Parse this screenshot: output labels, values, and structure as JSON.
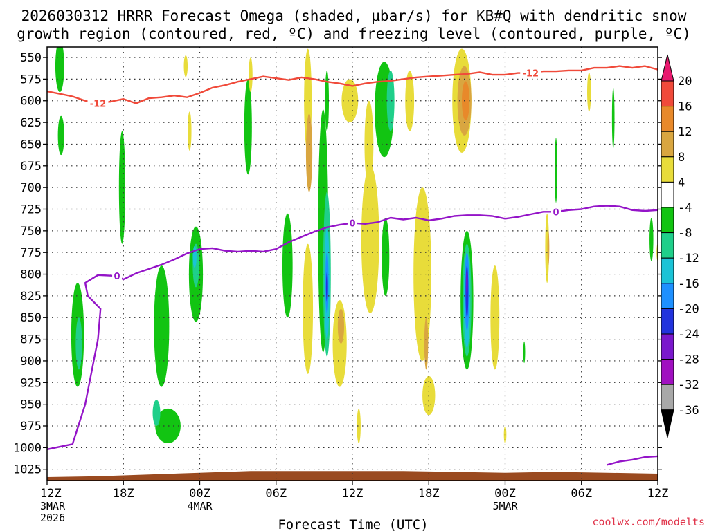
{
  "chart_data": {
    "type": "time-height",
    "title_line1": "2026030312 HRRR Forecast Omega (shaded, μbar/s) for KB#Q with dendritic snow",
    "title_line2": "growth region (contoured, red, ºC) and freezing level (contoured, purple, ºC)",
    "xlabel": "Forecast Time (UTC)",
    "credit": "coolwx.com/modelts",
    "ylim": [
      538,
      1038
    ],
    "xlim": [
      0,
      48
    ],
    "y_ticks": [
      {
        "label": "550",
        "p": 550
      },
      {
        "label": "575",
        "p": 575
      },
      {
        "label": "600",
        "p": 600
      },
      {
        "label": "625",
        "p": 625
      },
      {
        "label": "650",
        "p": 650
      },
      {
        "label": "675",
        "p": 675
      },
      {
        "label": "700",
        "p": 700
      },
      {
        "label": "725",
        "p": 725
      },
      {
        "label": "750",
        "p": 750
      },
      {
        "label": "775",
        "p": 775
      },
      {
        "label": "800",
        "p": 800
      },
      {
        "label": "825",
        "p": 825
      },
      {
        "label": "850",
        "p": 850
      },
      {
        "label": "875",
        "p": 875
      },
      {
        "label": "900",
        "p": 900
      },
      {
        "label": "925",
        "p": 925
      },
      {
        "label": "950",
        "p": 950
      },
      {
        "label": "975",
        "p": 975
      },
      {
        "label": "1000",
        "p": 1000
      },
      {
        "label": "1025",
        "p": 1025
      }
    ],
    "x_ticks": [
      {
        "label": "12Z",
        "h": 0,
        "date": "3MAR",
        "year": "2026"
      },
      {
        "label": "18Z",
        "h": 6
      },
      {
        "label": "00Z",
        "h": 12,
        "date": "4MAR"
      },
      {
        "label": "06Z",
        "h": 18
      },
      {
        "label": "12Z",
        "h": 24
      },
      {
        "label": "18Z",
        "h": 30
      },
      {
        "label": "00Z",
        "h": 36,
        "date": "5MAR"
      },
      {
        "label": "06Z",
        "h": 42
      },
      {
        "label": "12Z",
        "h": 48
      }
    ],
    "colorbar": {
      "labels": [
        "20",
        "16",
        "12",
        "8",
        "4",
        "-4",
        "-8",
        "-12",
        "-16",
        "-20",
        "-24",
        "-28",
        "-32",
        "-36"
      ],
      "bins": [
        {
          "lo": 20,
          "hi": 24,
          "color": "#e8196e"
        },
        {
          "lo": 16,
          "hi": 20,
          "color": "#f04a3a"
        },
        {
          "lo": 12,
          "hi": 16,
          "color": "#e8892a"
        },
        {
          "lo": 8,
          "hi": 12,
          "color": "#d9a640"
        },
        {
          "lo": 4,
          "hi": 8,
          "color": "#e8dc3a"
        },
        {
          "lo": -4,
          "hi": 4,
          "color": "#ffffff"
        },
        {
          "lo": -8,
          "hi": -4,
          "color": "#12c412"
        },
        {
          "lo": -12,
          "hi": -8,
          "color": "#1fcf8a"
        },
        {
          "lo": -16,
          "hi": -12,
          "color": "#1bc3d6"
        },
        {
          "lo": -20,
          "hi": -16,
          "color": "#1e90ff"
        },
        {
          "lo": -24,
          "hi": -20,
          "color": "#2233dd"
        },
        {
          "lo": -28,
          "hi": -24,
          "color": "#7a18cc"
        },
        {
          "lo": -32,
          "hi": -28,
          "color": "#a010c0"
        },
        {
          "lo": -36,
          "hi": -32,
          "color": "#a8a8a8"
        },
        {
          "lo": -40,
          "hi": -36,
          "color": "#000000"
        }
      ]
    },
    "omega_cells": [
      {
        "h": 1.0,
        "p": 560,
        "dh": 0.7,
        "dp": 60,
        "v": -5
      },
      {
        "h": 1.1,
        "p": 640,
        "dh": 0.5,
        "dp": 45,
        "v": -5
      },
      {
        "h": 2.4,
        "p": 870,
        "dh": 1.0,
        "dp": 120,
        "v": -5
      },
      {
        "h": 2.5,
        "p": 880,
        "dh": 0.5,
        "dp": 60,
        "v": -9
      },
      {
        "h": 5.9,
        "p": 700,
        "dh": 0.5,
        "dp": 130,
        "v": -5
      },
      {
        "h": 9.0,
        "p": 860,
        "dh": 1.2,
        "dp": 140,
        "v": -5
      },
      {
        "h": 9.5,
        "p": 975,
        "dh": 2.0,
        "dp": 40,
        "v": -5
      },
      {
        "h": 8.6,
        "p": 960,
        "dh": 0.6,
        "dp": 30,
        "v": -9
      },
      {
        "h": 11.2,
        "p": 635,
        "dh": 0.3,
        "dp": 45,
        "v": 5
      },
      {
        "h": 10.9,
        "p": 560,
        "dh": 0.3,
        "dp": 25,
        "v": 5
      },
      {
        "h": 11.7,
        "p": 800,
        "dh": 1.1,
        "dp": 110,
        "v": -5
      },
      {
        "h": 11.7,
        "p": 790,
        "dh": 0.5,
        "dp": 50,
        "v": -9
      },
      {
        "h": 11.6,
        "p": 780,
        "dh": 0.3,
        "dp": 25,
        "v": -13
      },
      {
        "h": 15.8,
        "p": 630,
        "dh": 0.6,
        "dp": 110,
        "v": -5
      },
      {
        "h": 16.0,
        "p": 570,
        "dh": 0.3,
        "dp": 40,
        "v": 5
      },
      {
        "h": 18.9,
        "p": 790,
        "dh": 0.8,
        "dp": 120,
        "v": -5
      },
      {
        "h": 20.5,
        "p": 600,
        "dh": 0.6,
        "dp": 120,
        "v": 5
      },
      {
        "h": 20.5,
        "p": 840,
        "dh": 0.8,
        "dp": 150,
        "v": 5
      },
      {
        "h": 20.6,
        "p": 670,
        "dh": 0.2,
        "dp": 30,
        "v": 17
      },
      {
        "h": 20.6,
        "p": 670,
        "dh": 0.35,
        "dp": 60,
        "v": 13
      },
      {
        "h": 20.6,
        "p": 660,
        "dh": 0.5,
        "dp": 90,
        "v": 9
      },
      {
        "h": 21.7,
        "p": 750,
        "dh": 0.8,
        "dp": 280,
        "v": -5
      },
      {
        "h": 22.0,
        "p": 800,
        "dh": 0.6,
        "dp": 190,
        "v": -9
      },
      {
        "h": 22.0,
        "p": 810,
        "dh": 0.4,
        "dp": 130,
        "v": -13
      },
      {
        "h": 22.0,
        "p": 810,
        "dh": 0.25,
        "dp": 70,
        "v": -17
      },
      {
        "h": 22.0,
        "p": 815,
        "dh": 0.15,
        "dp": 35,
        "v": -21
      },
      {
        "h": 22.0,
        "p": 600,
        "dh": 0.3,
        "dp": 70,
        "v": -5
      },
      {
        "h": 23.0,
        "p": 880,
        "dh": 1.1,
        "dp": 100,
        "v": 5
      },
      {
        "h": 23.1,
        "p": 860,
        "dh": 0.5,
        "dp": 40,
        "v": 9
      },
      {
        "h": 23.8,
        "p": 600,
        "dh": 1.3,
        "dp": 50,
        "v": 5
      },
      {
        "h": 25.3,
        "p": 650,
        "dh": 0.7,
        "dp": 100,
        "v": 5
      },
      {
        "h": 25.4,
        "p": 760,
        "dh": 1.4,
        "dp": 170,
        "v": 5
      },
      {
        "h": 24.5,
        "p": 975,
        "dh": 0.3,
        "dp": 40,
        "v": 5
      },
      {
        "h": 26.5,
        "p": 610,
        "dh": 1.5,
        "dp": 110,
        "v": -5
      },
      {
        "h": 27.0,
        "p": 600,
        "dh": 0.6,
        "dp": 70,
        "v": -9
      },
      {
        "h": 26.6,
        "p": 780,
        "dh": 0.6,
        "dp": 90,
        "v": -5
      },
      {
        "h": 28.5,
        "p": 600,
        "dh": 0.7,
        "dp": 70,
        "v": 5
      },
      {
        "h": 29.5,
        "p": 800,
        "dh": 1.4,
        "dp": 200,
        "v": 5
      },
      {
        "h": 30.0,
        "p": 940,
        "dh": 1.0,
        "dp": 45,
        "v": 5
      },
      {
        "h": 29.8,
        "p": 880,
        "dh": 0.3,
        "dp": 60,
        "v": 9
      },
      {
        "h": 32.6,
        "p": 600,
        "dh": 1.5,
        "dp": 120,
        "v": 5
      },
      {
        "h": 32.8,
        "p": 600,
        "dh": 1.1,
        "dp": 80,
        "v": 9
      },
      {
        "h": 32.9,
        "p": 600,
        "dh": 0.6,
        "dp": 45,
        "v": 13
      },
      {
        "h": 33.0,
        "p": 830,
        "dh": 1.0,
        "dp": 160,
        "v": -5
      },
      {
        "h": 33.0,
        "p": 830,
        "dh": 0.7,
        "dp": 130,
        "v": -9
      },
      {
        "h": 33.0,
        "p": 830,
        "dh": 0.5,
        "dp": 110,
        "v": -13
      },
      {
        "h": 33.0,
        "p": 820,
        "dh": 0.35,
        "dp": 90,
        "v": -17
      },
      {
        "h": 33.0,
        "p": 820,
        "dh": 0.22,
        "dp": 60,
        "v": -21
      },
      {
        "h": 33.0,
        "p": 810,
        "dh": 0.12,
        "dp": 30,
        "v": -25
      },
      {
        "h": 35.2,
        "p": 850,
        "dh": 0.7,
        "dp": 120,
        "v": 5
      },
      {
        "h": 36.0,
        "p": 985,
        "dh": 0.2,
        "dp": 20,
        "v": 5
      },
      {
        "h": 37.5,
        "p": 890,
        "dh": 0.15,
        "dp": 25,
        "v": -5
      },
      {
        "h": 39.3,
        "p": 770,
        "dh": 0.3,
        "dp": 80,
        "v": 5
      },
      {
        "h": 39.4,
        "p": 770,
        "dh": 0.15,
        "dp": 40,
        "v": 9
      },
      {
        "h": 40.0,
        "p": 680,
        "dh": 0.2,
        "dp": 75,
        "v": -5
      },
      {
        "h": 42.6,
        "p": 590,
        "dh": 0.3,
        "dp": 45,
        "v": 5
      },
      {
        "h": 44.5,
        "p": 620,
        "dh": 0.2,
        "dp": 70,
        "v": -5
      },
      {
        "h": 47.5,
        "p": 760,
        "dh": 0.3,
        "dp": 50,
        "v": -5
      },
      {
        "h": 48.0,
        "p": 775,
        "dh": 0.2,
        "dp": 20,
        "v": 5
      }
    ],
    "contour_dgz": {
      "color": "#f04a3a",
      "label": "-12",
      "points": [
        [
          0,
          589
        ],
        [
          1,
          592
        ],
        [
          2,
          595
        ],
        [
          3,
          600
        ],
        [
          4,
          603
        ],
        [
          5,
          601
        ],
        [
          6,
          598
        ],
        [
          7,
          603
        ],
        [
          8,
          597
        ],
        [
          9,
          596
        ],
        [
          10,
          594
        ],
        [
          11,
          596
        ],
        [
          12,
          591
        ],
        [
          13,
          585
        ],
        [
          14,
          582
        ],
        [
          15,
          578
        ],
        [
          16,
          575
        ],
        [
          17,
          572
        ],
        [
          18,
          574
        ],
        [
          19,
          576
        ],
        [
          20,
          573
        ],
        [
          21,
          575
        ],
        [
          22,
          578
        ],
        [
          23,
          580
        ],
        [
          24,
          583
        ],
        [
          25,
          580
        ],
        [
          26,
          578
        ],
        [
          27,
          577
        ],
        [
          28,
          575
        ],
        [
          29,
          573
        ],
        [
          30,
          572
        ],
        [
          31,
          571
        ],
        [
          32,
          570
        ],
        [
          33,
          569
        ],
        [
          34,
          567
        ],
        [
          35,
          570
        ],
        [
          36,
          570
        ],
        [
          37,
          568
        ],
        [
          38,
          568
        ],
        [
          39,
          566
        ],
        [
          40,
          566
        ],
        [
          41,
          565
        ],
        [
          42,
          565
        ],
        [
          43,
          562
        ],
        [
          44,
          562
        ],
        [
          45,
          560
        ],
        [
          46,
          562
        ],
        [
          47,
          560
        ],
        [
          48,
          564
        ]
      ]
    },
    "contour_freezing": {
      "color": "#9414c8",
      "label": "0",
      "points": [
        [
          0,
          1002
        ],
        [
          2,
          996
        ],
        [
          3,
          950
        ],
        [
          4,
          875
        ],
        [
          4.2,
          840
        ],
        [
          3.2,
          825
        ],
        [
          3.0,
          810
        ],
        [
          4.0,
          801
        ],
        [
          5.5,
          802
        ],
        [
          6.0,
          806
        ],
        [
          7.0,
          799
        ],
        [
          8.0,
          794
        ],
        [
          9.0,
          789
        ],
        [
          10,
          783
        ],
        [
          11,
          776
        ],
        [
          12,
          771
        ],
        [
          13,
          770
        ],
        [
          14,
          773
        ],
        [
          15,
          774
        ],
        [
          16,
          773
        ],
        [
          17,
          774
        ],
        [
          18,
          771
        ],
        [
          19,
          763
        ],
        [
          20,
          757
        ],
        [
          21,
          751
        ],
        [
          22,
          746
        ],
        [
          23,
          743
        ],
        [
          24,
          741
        ],
        [
          25,
          742
        ],
        [
          26,
          740
        ],
        [
          27,
          735
        ],
        [
          28,
          737
        ],
        [
          29,
          735
        ],
        [
          30,
          738
        ],
        [
          31,
          736
        ],
        [
          32,
          733
        ],
        [
          33,
          732
        ],
        [
          34,
          732
        ],
        [
          35,
          733
        ],
        [
          36,
          736
        ],
        [
          37,
          734
        ],
        [
          38,
          731
        ],
        [
          39,
          728
        ],
        [
          40,
          728
        ],
        [
          41,
          726
        ],
        [
          42,
          725
        ],
        [
          43,
          722
        ],
        [
          44,
          721
        ],
        [
          45,
          722
        ],
        [
          46,
          726
        ],
        [
          47,
          727
        ],
        [
          48,
          726
        ]
      ],
      "surface_points": [
        [
          44,
          1020
        ],
        [
          45,
          1016
        ],
        [
          46,
          1014
        ],
        [
          47,
          1011
        ],
        [
          48,
          1010
        ]
      ]
    },
    "terrain": {
      "color": "#9a4a20",
      "top_points": [
        [
          0,
          1034
        ],
        [
          4,
          1033
        ],
        [
          8,
          1031
        ],
        [
          12,
          1029
        ],
        [
          16,
          1027
        ],
        [
          20,
          1027
        ],
        [
          24,
          1027
        ],
        [
          28,
          1027
        ],
        [
          32,
          1028
        ],
        [
          36,
          1029
        ],
        [
          40,
          1028
        ],
        [
          44,
          1029
        ],
        [
          48,
          1030
        ]
      ]
    }
  }
}
